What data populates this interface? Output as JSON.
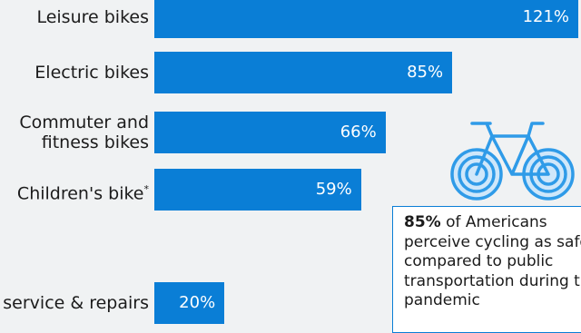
{
  "chart_data": {
    "type": "bar",
    "orientation": "horizontal",
    "categories": [
      "Leisure bikes",
      "Electric bikes",
      "Commuter and\nfitness bikes",
      "Children's bike",
      "service & repairs"
    ],
    "values": [
      121,
      85,
      66,
      59,
      20
    ],
    "value_labels": [
      "121%",
      "85%",
      "66%",
      "59%",
      "20%"
    ],
    "footnote_marks": [
      "",
      "",
      "",
      "*",
      ""
    ],
    "bar_color": "#0a7ed6",
    "text_color": "#1b1b1b"
  },
  "callout": {
    "highlight": "85%",
    "text": " of Americans perceive cycling as safer compared to public transportation during the pandemic"
  },
  "icons": {
    "callout_icon": "bicycle-icon"
  }
}
